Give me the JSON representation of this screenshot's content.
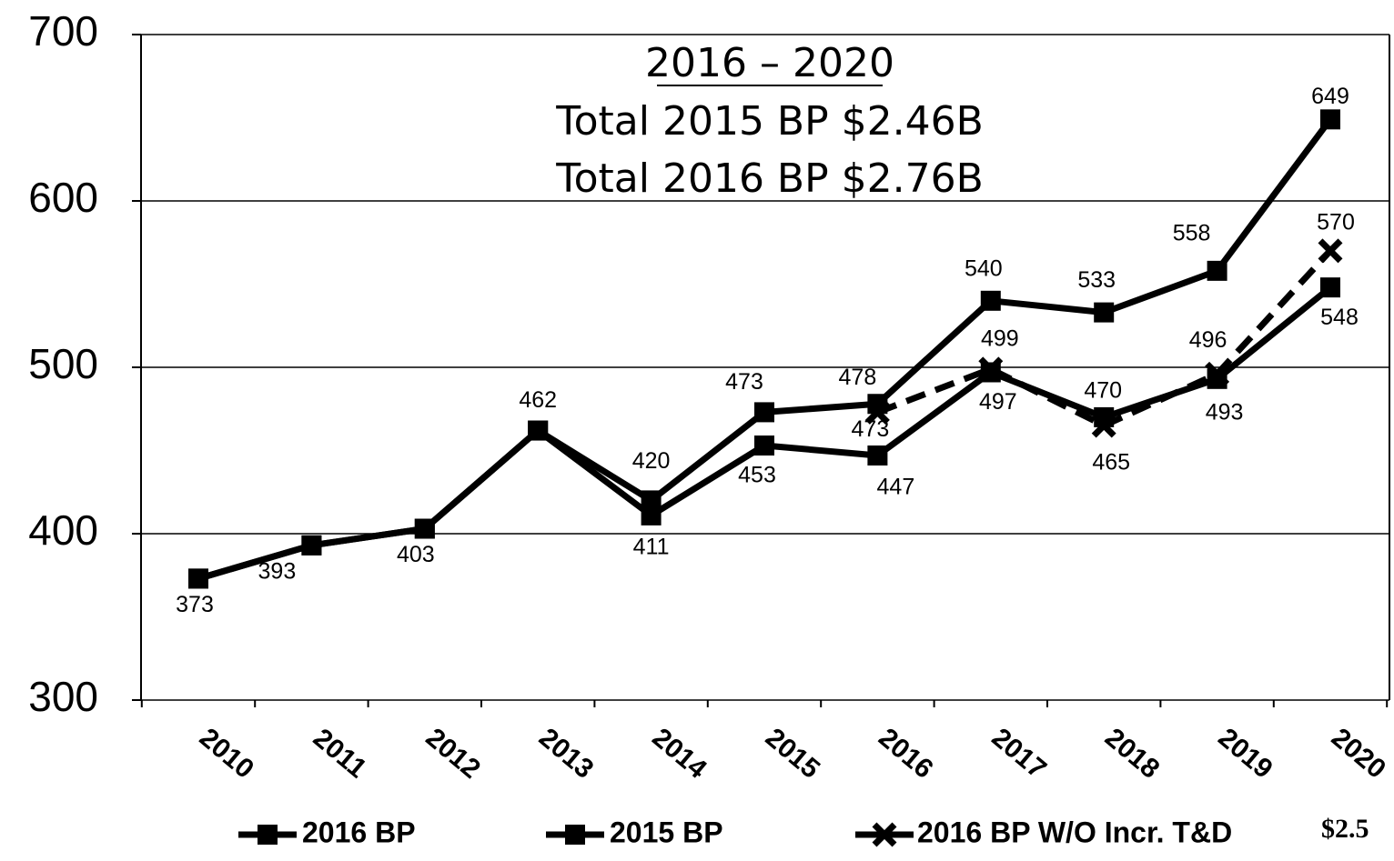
{
  "chart_data": {
    "type": "line",
    "annotations": [
      "2016 – 2020",
      "Total 2015 BP $2.46B",
      "Total 2016 BP $2.76B"
    ],
    "footnote": "$2.5",
    "categories": [
      "2010",
      "2011",
      "2012",
      "2013",
      "2014",
      "2015",
      "2016",
      "2017",
      "2018",
      "2019",
      "2020"
    ],
    "series": [
      {
        "name": "2016 BP",
        "color": "#000000",
        "marker": "square",
        "dashed": false,
        "values": [
          373,
          393,
          403,
          462,
          420,
          473,
          478,
          540,
          533,
          558,
          649
        ]
      },
      {
        "name": "2015 BP",
        "color": "#000000",
        "marker": "square",
        "dashed": false,
        "values": [
          373,
          393,
          403,
          462,
          411,
          453,
          447,
          497,
          470,
          493,
          548
        ]
      },
      {
        "name": "2016 BP W/O  Incr. T&D",
        "color": "#000000",
        "marker": "x",
        "dashed": true,
        "values": [
          null,
          null,
          null,
          null,
          null,
          null,
          473,
          499,
          465,
          496,
          570
        ]
      }
    ],
    "ylim": [
      300,
      700
    ],
    "yticks": [
      300,
      400,
      500,
      600,
      700
    ],
    "grid": true
  }
}
